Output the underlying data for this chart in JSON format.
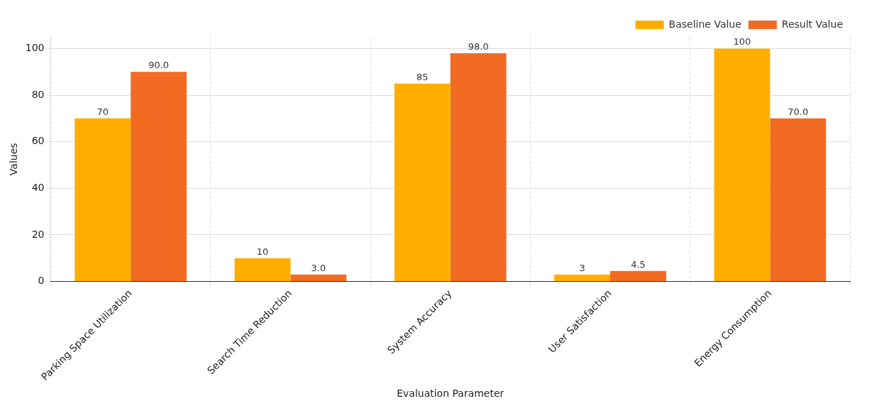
{
  "chart_data": {
    "type": "bar",
    "xlabel": "Evaluation Parameter",
    "ylabel": "Values",
    "categories": [
      "Parking Space Utilization",
      "Search Time Reduction",
      "System Accuracy",
      "User Satisfaction",
      "Energy Consumption"
    ],
    "series": [
      {
        "name": "Baseline Value",
        "color": "#ffae00",
        "values": [
          70,
          10,
          85,
          3,
          100
        ],
        "value_labels": [
          "70",
          "10",
          "85",
          "3",
          "100"
        ]
      },
      {
        "name": "Result Value",
        "color": "#f26b22",
        "values": [
          90,
          3,
          98,
          4.5,
          70
        ],
        "value_labels": [
          "90.0",
          "3.0",
          "98.0",
          "4.5",
          "70.0"
        ]
      }
    ],
    "ylim": [
      0,
      105
    ],
    "yticks": [
      0,
      20,
      40,
      60,
      80,
      100
    ],
    "grid": true,
    "legend": "top right"
  }
}
